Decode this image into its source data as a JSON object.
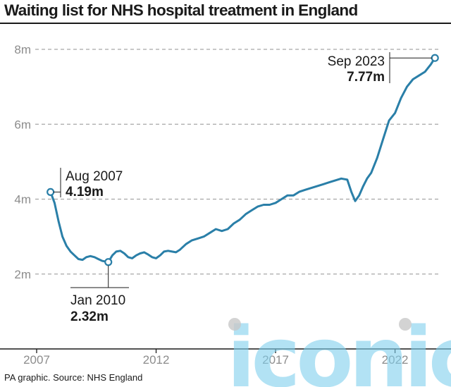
{
  "header": {
    "title": "Waiting list for NHS hospital treatment in England"
  },
  "footer": {
    "source": "PA graphic. Source: NHS England"
  },
  "watermark": {
    "text": "iconic",
    "color": "#7fd0ee"
  },
  "colors": {
    "line": "#2a7fa8",
    "grid": "#a6a6a6",
    "text": "#1a1a1a",
    "tick": "#8c8c8c"
  },
  "chart_data": {
    "type": "line",
    "title": "Waiting list for NHS hospital treatment in England",
    "xlabel": "",
    "ylabel": "",
    "xlim": [
      2007.0,
      2023.9
    ],
    "ylim": [
      0,
      8
    ],
    "grid": true,
    "legend": "none",
    "x_ticks": [
      {
        "value": 2007,
        "label": "2007"
      },
      {
        "value": 2012,
        "label": "2012"
      },
      {
        "value": 2017,
        "label": "2017"
      },
      {
        "value": 2022,
        "label": "2022"
      }
    ],
    "y_ticks": [
      {
        "value": 2,
        "label": "2m"
      },
      {
        "value": 4,
        "label": "4m"
      },
      {
        "value": 6,
        "label": "6m"
      },
      {
        "value": 8,
        "label": "8m"
      }
    ],
    "series": [
      {
        "name": "",
        "x": [
          2007.58,
          2007.75,
          2007.92,
          2008.08,
          2008.25,
          2008.42,
          2008.58,
          2008.75,
          2008.92,
          2009.08,
          2009.25,
          2009.42,
          2009.58,
          2009.75,
          2009.92,
          2010.0,
          2010.17,
          2010.33,
          2010.5,
          2010.67,
          2010.83,
          2011.0,
          2011.17,
          2011.33,
          2011.5,
          2011.67,
          2011.83,
          2012.0,
          2012.17,
          2012.33,
          2012.5,
          2012.67,
          2012.83,
          2013.0,
          2013.25,
          2013.5,
          2013.75,
          2014.0,
          2014.25,
          2014.5,
          2014.75,
          2015.0,
          2015.25,
          2015.5,
          2015.75,
          2016.0,
          2016.25,
          2016.5,
          2016.75,
          2017.0,
          2017.25,
          2017.5,
          2017.75,
          2018.0,
          2018.25,
          2018.5,
          2018.75,
          2019.0,
          2019.25,
          2019.5,
          2019.75,
          2020.0,
          2020.17,
          2020.33,
          2020.5,
          2020.67,
          2020.83,
          2021.0,
          2021.25,
          2021.5,
          2021.75,
          2022.0,
          2022.25,
          2022.5,
          2022.75,
          2023.0,
          2023.25,
          2023.5,
          2023.67
        ],
        "values": [
          4.19,
          3.9,
          3.4,
          3.0,
          2.75,
          2.6,
          2.5,
          2.4,
          2.38,
          2.45,
          2.48,
          2.45,
          2.4,
          2.35,
          2.33,
          2.32,
          2.5,
          2.6,
          2.62,
          2.55,
          2.45,
          2.42,
          2.5,
          2.55,
          2.58,
          2.52,
          2.45,
          2.42,
          2.5,
          2.6,
          2.62,
          2.6,
          2.58,
          2.65,
          2.8,
          2.9,
          2.95,
          3.0,
          3.1,
          3.2,
          3.15,
          3.2,
          3.35,
          3.45,
          3.6,
          3.7,
          3.8,
          3.85,
          3.85,
          3.9,
          4.0,
          4.1,
          4.1,
          4.2,
          4.25,
          4.3,
          4.35,
          4.4,
          4.45,
          4.5,
          4.55,
          4.52,
          4.2,
          3.95,
          4.1,
          4.35,
          4.55,
          4.7,
          5.1,
          5.6,
          6.1,
          6.3,
          6.7,
          7.0,
          7.2,
          7.3,
          7.4,
          7.6,
          7.77
        ]
      }
    ],
    "annotations": [
      {
        "date": "Aug 2007",
        "value": "4.19m"
      },
      {
        "date": "Jan 2010",
        "value": "2.32m"
      },
      {
        "date": "Sep 2023",
        "value": "7.77m"
      }
    ]
  }
}
